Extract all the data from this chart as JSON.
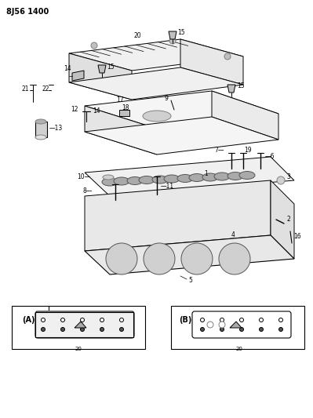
{
  "title": "8J56 1400",
  "bg_color": "#ffffff",
  "line_color": "#000000",
  "fig_width": 3.99,
  "fig_height": 5.33,
  "dpi": 100
}
